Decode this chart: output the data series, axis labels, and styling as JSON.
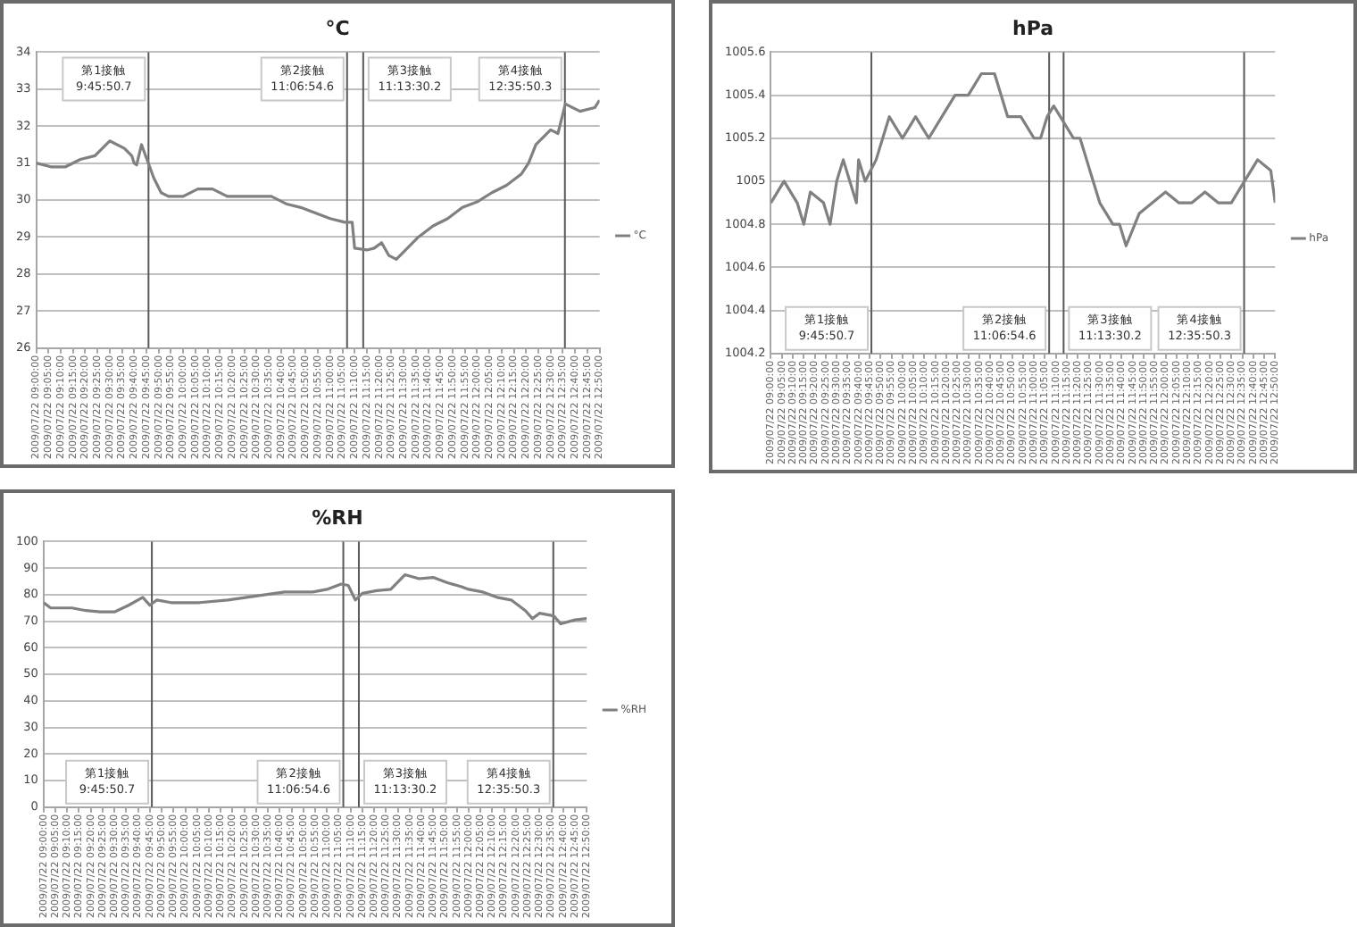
{
  "chart_data": [
    {
      "type": "line",
      "title": "°C",
      "x": [
        "2009-07-22T09:00",
        "2009-07-22T09:06",
        "2009-07-22T09:12",
        "2009-07-22T09:18",
        "2009-07-22T09:24",
        "2009-07-22T09:30",
        "2009-07-22T09:36",
        "2009-07-22T09:39",
        "2009-07-22T09:40",
        "2009-07-22T09:41",
        "2009-07-22T09:43",
        "2009-07-22T09:48",
        "2009-07-22T09:51",
        "2009-07-22T09:54",
        "2009-07-22T10:00",
        "2009-07-22T10:06",
        "2009-07-22T10:12",
        "2009-07-22T10:18",
        "2009-07-22T10:30",
        "2009-07-22T10:36",
        "2009-07-22T10:42",
        "2009-07-22T10:48",
        "2009-07-22T10:54",
        "2009-07-22T11:00",
        "2009-07-22T11:06",
        "2009-07-22T11:09",
        "2009-07-22T11:10",
        "2009-07-22T11:15",
        "2009-07-22T11:18",
        "2009-07-22T11:21",
        "2009-07-22T11:24",
        "2009-07-22T11:27",
        "2009-07-22T11:30",
        "2009-07-22T11:36",
        "2009-07-22T11:42",
        "2009-07-22T11:48",
        "2009-07-22T11:54",
        "2009-07-22T12:00",
        "2009-07-22T12:06",
        "2009-07-22T12:12",
        "2009-07-22T12:18",
        "2009-07-22T12:21",
        "2009-07-22T12:24",
        "2009-07-22T12:30",
        "2009-07-22T12:33",
        "2009-07-22T12:36",
        "2009-07-22T12:42",
        "2009-07-22T12:48",
        "2009-07-22T12:50"
      ],
      "series": [
        {
          "name": "°C",
          "color": "#808080",
          "values": [
            31.0,
            30.9,
            30.9,
            31.1,
            31.2,
            31.6,
            31.4,
            31.2,
            31.0,
            30.95,
            31.5,
            30.6,
            30.2,
            30.1,
            30.1,
            30.3,
            30.3,
            30.1,
            30.1,
            30.1,
            29.9,
            29.8,
            29.65,
            29.5,
            29.4,
            29.4,
            28.7,
            28.65,
            28.7,
            28.85,
            28.5,
            28.4,
            28.6,
            29.0,
            29.3,
            29.5,
            29.8,
            29.95,
            30.2,
            30.4,
            30.7,
            31.0,
            31.5,
            31.9,
            31.8,
            32.6,
            32.4,
            32.5,
            32.7
          ]
        }
      ],
      "xlim": [
        "2009-07-22T09:00",
        "2009-07-22T12:50"
      ],
      "ylim": [
        26,
        34
      ],
      "yticks": [
        26,
        27,
        28,
        29,
        30,
        31,
        32,
        33,
        34
      ],
      "xticks": [
        {
          "value": "2009-07-22T09:00",
          "label": "2009/07/22 09:00:00"
        },
        {
          "value": "2009-07-22T09:05",
          "label": "2009/07/22 09:05:00"
        },
        {
          "value": "2009-07-22T09:10",
          "label": "2009/07/22 09:10:00"
        },
        {
          "value": "2009-07-22T09:15",
          "label": "2009/07/22 09:15:00"
        },
        {
          "value": "2009-07-22T09:20",
          "label": "2009/07/22 09:20:00"
        },
        {
          "value": "2009-07-22T09:25",
          "label": "2009/07/22 09:25:00"
        },
        {
          "value": "2009-07-22T09:30",
          "label": "2009/07/22 09:30:00"
        },
        {
          "value": "2009-07-22T09:35",
          "label": "2009/07/22 09:35:00"
        },
        {
          "value": "2009-07-22T09:40",
          "label": "2009/07/22 09:40:00"
        },
        {
          "value": "2009-07-22T09:45",
          "label": "2009/07/22 09:45:00"
        },
        {
          "value": "2009-07-22T09:50",
          "label": "2009/07/22 09:50:00"
        },
        {
          "value": "2009-07-22T09:55",
          "label": "2009/07/22 09:55:00"
        },
        {
          "value": "2009-07-22T10:00",
          "label": "2009/07/22 10:00:00"
        },
        {
          "value": "2009-07-22T10:05",
          "label": "2009/07/22 10:05:00"
        },
        {
          "value": "2009-07-22T10:10",
          "label": "2009/07/22 10:10:00"
        },
        {
          "value": "2009-07-22T10:15",
          "label": "2009/07/22 10:15:00"
        },
        {
          "value": "2009-07-22T10:20",
          "label": "2009/07/22 10:20:00"
        },
        {
          "value": "2009-07-22T10:25",
          "label": "2009/07/22 10:25:00"
        },
        {
          "value": "2009-07-22T10:30",
          "label": "2009/07/22 10:30:00"
        },
        {
          "value": "2009-07-22T10:35",
          "label": "2009/07/22 10:35:00"
        },
        {
          "value": "2009-07-22T10:40",
          "label": "2009/07/22 10:40:00"
        },
        {
          "value": "2009-07-22T10:45",
          "label": "2009/07/22 10:45:00"
        },
        {
          "value": "2009-07-22T10:50",
          "label": "2009/07/22 10:50:00"
        },
        {
          "value": "2009-07-22T10:55",
          "label": "2009/07/22 10:55:00"
        },
        {
          "value": "2009-07-22T11:00",
          "label": "2009/07/22 11:00:00"
        },
        {
          "value": "2009-07-22T11:05",
          "label": "2009/07/22 11:05:00"
        },
        {
          "value": "2009-07-22T11:10",
          "label": "2009/07/22 11:10:00"
        },
        {
          "value": "2009-07-22T11:15",
          "label": "2009/07/22 11:15:00"
        },
        {
          "value": "2009-07-22T11:20",
          "label": "2009/07/22 11:20:00"
        },
        {
          "value": "2009-07-22T11:25",
          "label": "2009/07/22 11:25:00"
        },
        {
          "value": "2009-07-22T11:30",
          "label": "2009/07/22 11:30:00"
        },
        {
          "value": "2009-07-22T11:35",
          "label": "2009/07/22 11:35:00"
        },
        {
          "value": "2009-07-22T11:40",
          "label": "2009/07/22 11:40:00"
        },
        {
          "value": "2009-07-22T11:45",
          "label": "2009/07/22 11:45:00"
        },
        {
          "value": "2009-07-22T11:50",
          "label": "2009/07/22 11:50:00"
        },
        {
          "value": "2009-07-22T11:55",
          "label": "2009/07/22 11:55:00"
        },
        {
          "value": "2009-07-22T12:00",
          "label": "2009/07/22 12:00:00"
        },
        {
          "value": "2009-07-22T12:05",
          "label": "2009/07/22 12:05:00"
        },
        {
          "value": "2009-07-22T12:10",
          "label": "2009/07/22 12:10:00"
        },
        {
          "value": "2009-07-22T12:15",
          "label": "2009/07/22 12:15:00"
        },
        {
          "value": "2009-07-22T12:20",
          "label": "2009/07/22 12:20:00"
        },
        {
          "value": "2009-07-22T12:25",
          "label": "2009/07/22 12:25:00"
        },
        {
          "value": "2009-07-22T12:30",
          "label": "2009/07/22 12:30:00"
        },
        {
          "value": "2009-07-22T12:35",
          "label": "2009/07/22 12:35:00"
        },
        {
          "value": "2009-07-22T12:40",
          "label": "2009/07/22 12:40:00"
        },
        {
          "value": "2009-07-22T12:45",
          "label": "2009/07/22 12:45:00"
        },
        {
          "value": "2009-07-22T12:50",
          "label": "2009/07/22 12:50:00"
        }
      ],
      "ref_lines": [
        {
          "axis": "x",
          "value": "2009-07-22T09:45:50.7",
          "label": "第1接触\n9:45:50.7",
          "color": "#595959"
        },
        {
          "axis": "x",
          "value": "2009-07-22T11:06:54.6",
          "label": "第2接触\n11:06:54.6",
          "color": "#595959"
        },
        {
          "axis": "x",
          "value": "2009-07-22T11:13:30.2",
          "label": "第3接触\n11:13:30.2",
          "color": "#595959"
        },
        {
          "axis": "x",
          "value": "2009-07-22T12:35:50.3",
          "label": "第4接触\n12:35:50.3",
          "color": "#595959"
        }
      ],
      "grid": "y",
      "legend": "right",
      "marker": "none",
      "line_style": "solid"
    },
    {
      "type": "line",
      "title": "hPa",
      "x": [
        "2009-07-22T09:00",
        "2009-07-22T09:06",
        "2009-07-22T09:12",
        "2009-07-22T09:15",
        "2009-07-22T09:18",
        "2009-07-22T09:24",
        "2009-07-22T09:27",
        "2009-07-22T09:30",
        "2009-07-22T09:33",
        "2009-07-22T09:36",
        "2009-07-22T09:39",
        "2009-07-22T09:40",
        "2009-07-22T09:43",
        "2009-07-22T09:48",
        "2009-07-22T09:51",
        "2009-07-22T09:54",
        "2009-07-22T10:00",
        "2009-07-22T10:06",
        "2009-07-22T10:12",
        "2009-07-22T10:18",
        "2009-07-22T10:24",
        "2009-07-22T10:30",
        "2009-07-22T10:36",
        "2009-07-22T10:42",
        "2009-07-22T10:45",
        "2009-07-22T10:48",
        "2009-07-22T10:54",
        "2009-07-22T11:00",
        "2009-07-22T11:03",
        "2009-07-22T11:06",
        "2009-07-22T11:09",
        "2009-07-22T11:12",
        "2009-07-22T11:18",
        "2009-07-22T11:21",
        "2009-07-22T11:24",
        "2009-07-22T11:27",
        "2009-07-22T11:30",
        "2009-07-22T11:36",
        "2009-07-22T11:39",
        "2009-07-22T11:42",
        "2009-07-22T11:48",
        "2009-07-22T11:54",
        "2009-07-22T12:00",
        "2009-07-22T12:06",
        "2009-07-22T12:12",
        "2009-07-22T12:18",
        "2009-07-22T12:24",
        "2009-07-22T12:30",
        "2009-07-22T12:36",
        "2009-07-22T12:42",
        "2009-07-22T12:48",
        "2009-07-22T12:50"
      ],
      "series": [
        {
          "name": "hPa",
          "color": "#808080",
          "values": [
            1004.9,
            1005.0,
            1004.9,
            1004.8,
            1004.95,
            1004.9,
            1004.8,
            1005.0,
            1005.1,
            1005.0,
            1004.9,
            1005.1,
            1005.0,
            1005.1,
            1005.2,
            1005.3,
            1005.2,
            1005.3,
            1005.2,
            1005.3,
            1005.4,
            1005.4,
            1005.5,
            1005.5,
            1005.4,
            1005.3,
            1005.3,
            1005.2,
            1005.2,
            1005.3,
            1005.35,
            1005.3,
            1005.2,
            1005.2,
            1005.1,
            1005.0,
            1004.9,
            1004.8,
            1004.8,
            1004.7,
            1004.85,
            1004.9,
            1004.95,
            1004.9,
            1004.9,
            1004.95,
            1004.9,
            1004.9,
            1005.0,
            1005.1,
            1005.05,
            1004.9
          ]
        }
      ],
      "xlim": [
        "2009-07-22T09:00",
        "2009-07-22T12:50"
      ],
      "ylim": [
        1004.2,
        1005.6
      ],
      "yticks": [
        1004.2,
        1004.4,
        1004.6,
        1004.8,
        1005,
        1005.2,
        1005.4,
        1005.6
      ],
      "xticks": [
        {
          "value": "2009-07-22T09:00",
          "label": "2009/07/22 09:00:00"
        },
        {
          "value": "2009-07-22T09:05",
          "label": "2009/07/22 09:05:00"
        },
        {
          "value": "2009-07-22T09:10",
          "label": "2009/07/22 09:10:00"
        },
        {
          "value": "2009-07-22T09:15",
          "label": "2009/07/22 09:15:00"
        },
        {
          "value": "2009-07-22T09:20",
          "label": "2009/07/22 09:20:00"
        },
        {
          "value": "2009-07-22T09:25",
          "label": "2009/07/22 09:25:00"
        },
        {
          "value": "2009-07-22T09:30",
          "label": "2009/07/22 09:30:00"
        },
        {
          "value": "2009-07-22T09:35",
          "label": "2009/07/22 09:35:00"
        },
        {
          "value": "2009-07-22T09:40",
          "label": "2009/07/22 09:40:00"
        },
        {
          "value": "2009-07-22T09:45",
          "label": "2009/07/22 09:45:00"
        },
        {
          "value": "2009-07-22T09:50",
          "label": "2009/07/22 09:50:00"
        },
        {
          "value": "2009-07-22T09:55",
          "label": "2009/07/22 09:55:00"
        },
        {
          "value": "2009-07-22T10:00",
          "label": "2009/07/22 10:00:00"
        },
        {
          "value": "2009-07-22T10:05",
          "label": "2009/07/22 10:05:00"
        },
        {
          "value": "2009-07-22T10:10",
          "label": "2009/07/22 10:10:00"
        },
        {
          "value": "2009-07-22T10:15",
          "label": "2009/07/22 10:15:00"
        },
        {
          "value": "2009-07-22T10:20",
          "label": "2009/07/22 10:20:00"
        },
        {
          "value": "2009-07-22T10:25",
          "label": "2009/07/22 10:25:00"
        },
        {
          "value": "2009-07-22T10:30",
          "label": "2009/07/22 10:30:00"
        },
        {
          "value": "2009-07-22T10:35",
          "label": "2009/07/22 10:35:00"
        },
        {
          "value": "2009-07-22T10:40",
          "label": "2009/07/22 10:40:00"
        },
        {
          "value": "2009-07-22T10:45",
          "label": "2009/07/22 10:45:00"
        },
        {
          "value": "2009-07-22T10:50",
          "label": "2009/07/22 10:50:00"
        },
        {
          "value": "2009-07-22T10:55",
          "label": "2009/07/22 10:55:00"
        },
        {
          "value": "2009-07-22T11:00",
          "label": "2009/07/22 11:00:00"
        },
        {
          "value": "2009-07-22T11:05",
          "label": "2009/07/22 11:05:00"
        },
        {
          "value": "2009-07-22T11:10",
          "label": "2009/07/22 11:10:00"
        },
        {
          "value": "2009-07-22T11:15",
          "label": "2009/07/22 11:15:00"
        },
        {
          "value": "2009-07-22T11:20",
          "label": "2009/07/22 11:20:00"
        },
        {
          "value": "2009-07-22T11:25",
          "label": "2009/07/22 11:25:00"
        },
        {
          "value": "2009-07-22T11:30",
          "label": "2009/07/22 11:30:00"
        },
        {
          "value": "2009-07-22T11:35",
          "label": "2009/07/22 11:35:00"
        },
        {
          "value": "2009-07-22T11:40",
          "label": "2009/07/22 11:40:00"
        },
        {
          "value": "2009-07-22T11:45",
          "label": "2009/07/22 11:45:00"
        },
        {
          "value": "2009-07-22T11:50",
          "label": "2009/07/22 11:50:00"
        },
        {
          "value": "2009-07-22T11:55",
          "label": "2009/07/22 11:55:00"
        },
        {
          "value": "2009-07-22T12:00",
          "label": "2009/07/22 12:00:00"
        },
        {
          "value": "2009-07-22T12:05",
          "label": "2009/07/22 12:05:00"
        },
        {
          "value": "2009-07-22T12:10",
          "label": "2009/07/22 12:10:00"
        },
        {
          "value": "2009-07-22T12:15",
          "label": "2009/07/22 12:15:00"
        },
        {
          "value": "2009-07-22T12:20",
          "label": "2009/07/22 12:20:00"
        },
        {
          "value": "2009-07-22T12:25",
          "label": "2009/07/22 12:25:00"
        },
        {
          "value": "2009-07-22T12:30",
          "label": "2009/07/22 12:30:00"
        },
        {
          "value": "2009-07-22T12:35",
          "label": "2009/07/22 12:35:00"
        },
        {
          "value": "2009-07-22T12:40",
          "label": "2009/07/22 12:40:00"
        },
        {
          "value": "2009-07-22T12:45",
          "label": "2009/07/22 12:45:00"
        },
        {
          "value": "2009-07-22T12:50",
          "label": "2009/07/22 12:50:00"
        }
      ],
      "ref_lines": [
        {
          "axis": "x",
          "value": "2009-07-22T09:45:50.7",
          "label": "第1接触\n9:45:50.7",
          "color": "#595959"
        },
        {
          "axis": "x",
          "value": "2009-07-22T11:06:54.6",
          "label": "第2接触\n11:06:54.6",
          "color": "#595959"
        },
        {
          "axis": "x",
          "value": "2009-07-22T11:13:30.2",
          "label": "第3接触\n11:13:30.2",
          "color": "#595959"
        },
        {
          "axis": "x",
          "value": "2009-07-22T12:35:50.3",
          "label": "第4接触\n12:35:50.3",
          "color": "#595959"
        }
      ],
      "grid": "y",
      "legend": "right",
      "marker": "none",
      "line_style": "solid"
    },
    {
      "type": "line",
      "title": "%RH",
      "x": [
        "2009-07-22T09:00",
        "2009-07-22T09:03",
        "2009-07-22T09:12",
        "2009-07-22T09:18",
        "2009-07-22T09:24",
        "2009-07-22T09:30",
        "2009-07-22T09:36",
        "2009-07-22T09:42",
        "2009-07-22T09:45",
        "2009-07-22T09:48",
        "2009-07-22T09:54",
        "2009-07-22T10:00",
        "2009-07-22T10:06",
        "2009-07-22T10:18",
        "2009-07-22T10:30",
        "2009-07-22T10:42",
        "2009-07-22T10:54",
        "2009-07-22T11:00",
        "2009-07-22T11:06",
        "2009-07-22T11:09",
        "2009-07-22T11:12",
        "2009-07-22T11:15",
        "2009-07-22T11:21",
        "2009-07-22T11:27",
        "2009-07-22T11:33",
        "2009-07-22T11:39",
        "2009-07-22T11:45",
        "2009-07-22T11:51",
        "2009-07-22T11:57",
        "2009-07-22T12:00",
        "2009-07-22T12:06",
        "2009-07-22T12:12",
        "2009-07-22T12:18",
        "2009-07-22T12:24",
        "2009-07-22T12:27",
        "2009-07-22T12:30",
        "2009-07-22T12:36",
        "2009-07-22T12:39",
        "2009-07-22T12:45",
        "2009-07-22T12:50"
      ],
      "series": [
        {
          "name": "%RH",
          "color": "#808080",
          "values": [
            77,
            75,
            75,
            74,
            73.5,
            73.5,
            76,
            79,
            76,
            78,
            77,
            77,
            77,
            78,
            79.5,
            81,
            81,
            82,
            84,
            83.5,
            78,
            80.5,
            81.5,
            82,
            87.5,
            86,
            86.5,
            84.5,
            83,
            82,
            81,
            79,
            78,
            74,
            71,
            73,
            72,
            69,
            70.5,
            71
          ]
        }
      ],
      "xlim": [
        "2009-07-22T09:00",
        "2009-07-22T12:50"
      ],
      "ylim": [
        0,
        100
      ],
      "yticks": [
        0,
        10,
        20,
        30,
        40,
        50,
        60,
        70,
        80,
        90,
        100
      ],
      "xticks": [
        {
          "value": "2009-07-22T09:00",
          "label": "2009/07/22 09:00:00"
        },
        {
          "value": "2009-07-22T09:05",
          "label": "2009/07/22 09:05:00"
        },
        {
          "value": "2009-07-22T09:10",
          "label": "2009/07/22 09:10:00"
        },
        {
          "value": "2009-07-22T09:15",
          "label": "2009/07/22 09:15:00"
        },
        {
          "value": "2009-07-22T09:20",
          "label": "2009/07/22 09:20:00"
        },
        {
          "value": "2009-07-22T09:25",
          "label": "2009/07/22 09:25:00"
        },
        {
          "value": "2009-07-22T09:30",
          "label": "2009/07/22 09:30:00"
        },
        {
          "value": "2009-07-22T09:35",
          "label": "2009/07/22 09:35:00"
        },
        {
          "value": "2009-07-22T09:40",
          "label": "2009/07/22 09:40:00"
        },
        {
          "value": "2009-07-22T09:45",
          "label": "2009/07/22 09:45:00"
        },
        {
          "value": "2009-07-22T09:50",
          "label": "2009/07/22 09:50:00"
        },
        {
          "value": "2009-07-22T09:55",
          "label": "2009/07/22 09:55:00"
        },
        {
          "value": "2009-07-22T10:00",
          "label": "2009/07/22 10:00:00"
        },
        {
          "value": "2009-07-22T10:05",
          "label": "2009/07/22 10:05:00"
        },
        {
          "value": "2009-07-22T10:10",
          "label": "2009/07/22 10:10:00"
        },
        {
          "value": "2009-07-22T10:15",
          "label": "2009/07/22 10:15:00"
        },
        {
          "value": "2009-07-22T10:20",
          "label": "2009/07/22 10:20:00"
        },
        {
          "value": "2009-07-22T10:25",
          "label": "2009/07/22 10:25:00"
        },
        {
          "value": "2009-07-22T10:30",
          "label": "2009/07/22 10:30:00"
        },
        {
          "value": "2009-07-22T10:35",
          "label": "2009/07/22 10:35:00"
        },
        {
          "value": "2009-07-22T10:40",
          "label": "2009/07/22 10:40:00"
        },
        {
          "value": "2009-07-22T10:45",
          "label": "2009/07/22 10:45:00"
        },
        {
          "value": "2009-07-22T10:50",
          "label": "2009/07/22 10:50:00"
        },
        {
          "value": "2009-07-22T10:55",
          "label": "2009/07/22 10:55:00"
        },
        {
          "value": "2009-07-22T11:00",
          "label": "2009/07/22 11:00:00"
        },
        {
          "value": "2009-07-22T11:05",
          "label": "2009/07/22 11:05:00"
        },
        {
          "value": "2009-07-22T11:10",
          "label": "2009/07/22 11:10:00"
        },
        {
          "value": "2009-07-22T11:15",
          "label": "2009/07/22 11:15:00"
        },
        {
          "value": "2009-07-22T11:20",
          "label": "2009/07/22 11:20:00"
        },
        {
          "value": "2009-07-22T11:25",
          "label": "2009/07/22 11:25:00"
        },
        {
          "value": "2009-07-22T11:30",
          "label": "2009/07/22 11:30:00"
        },
        {
          "value": "2009-07-22T11:35",
          "label": "2009/07/22 11:35:00"
        },
        {
          "value": "2009-07-22T11:40",
          "label": "2009/07/22 11:40:00"
        },
        {
          "value": "2009-07-22T11:45",
          "label": "2009/07/22 11:45:00"
        },
        {
          "value": "2009-07-22T11:50",
          "label": "2009/07/22 11:50:00"
        },
        {
          "value": "2009-07-22T11:55",
          "label": "2009/07/22 11:55:00"
        },
        {
          "value": "2009-07-22T12:00",
          "label": "2009/07/22 12:00:00"
        },
        {
          "value": "2009-07-22T12:05",
          "label": "2009/07/22 12:05:00"
        },
        {
          "value": "2009-07-22T12:10",
          "label": "2009/07/22 12:10:00"
        },
        {
          "value": "2009-07-22T12:15",
          "label": "2009/07/22 12:15:00"
        },
        {
          "value": "2009-07-22T12:20",
          "label": "2009/07/22 12:20:00"
        },
        {
          "value": "2009-07-22T12:25",
          "label": "2009/07/22 12:25:00"
        },
        {
          "value": "2009-07-22T12:30",
          "label": "2009/07/22 12:30:00"
        },
        {
          "value": "2009-07-22T12:35",
          "label": "2009/07/22 12:35:00"
        },
        {
          "value": "2009-07-22T12:40",
          "label": "2009/07/22 12:40:00"
        },
        {
          "value": "2009-07-22T12:45",
          "label": "2009/07/22 12:45:00"
        },
        {
          "value": "2009-07-22T12:50",
          "label": "2009/07/22 12:50:00"
        }
      ],
      "ref_lines": [
        {
          "axis": "x",
          "value": "2009-07-22T09:45:50.7",
          "label": "第1接触\n9:45:50.7",
          "color": "#595959"
        },
        {
          "axis": "x",
          "value": "2009-07-22T11:06:54.6",
          "label": "第2接触\n11:06:54.6",
          "color": "#595959"
        },
        {
          "axis": "x",
          "value": "2009-07-22T11:13:30.2",
          "label": "第3接触\n11:13:30.2",
          "color": "#595959"
        },
        {
          "axis": "x",
          "value": "2009-07-22T12:35:50.3",
          "label": "第4接触\n12:35:50.3",
          "color": "#595959"
        }
      ],
      "grid": "y",
      "legend": "right",
      "marker": "none",
      "line_style": "solid"
    }
  ]
}
